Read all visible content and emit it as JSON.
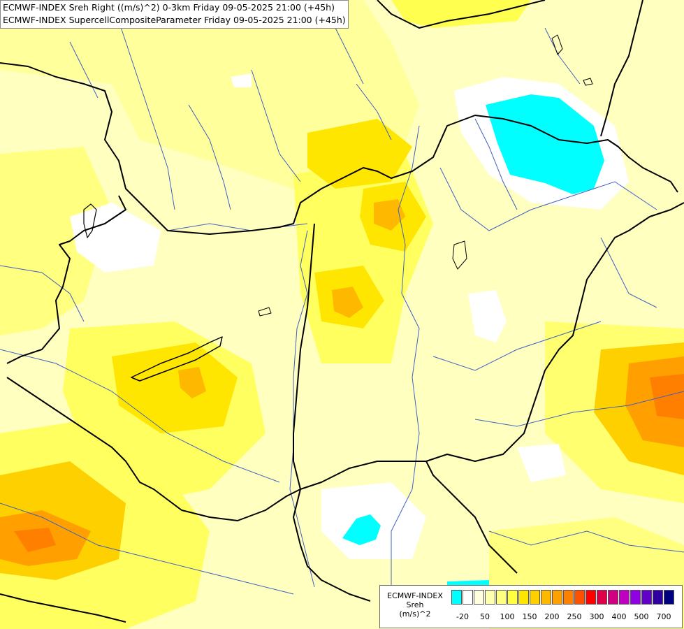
{
  "title_lines": [
    "ECMWF-INDEX Sreh Right ((m/s)^2) 0-3km Friday 09-05-2025 21:00 (+45h)",
    "ECMWF-INDEX SupercellCompositeParameter Friday 09-05-2025 21:00 (+45h)"
  ],
  "legend": {
    "title_lines": [
      "ECMWF-INDEX",
      "Sreh",
      "(m/s)^2"
    ],
    "colors": [
      "#00ffff",
      "#ffffff",
      "#ffffe0",
      "#ffffb0",
      "#ffff80",
      "#ffff40",
      "#ffe600",
      "#ffd000",
      "#ffb800",
      "#ffa000",
      "#ff8000",
      "#ff5000",
      "#ff0000",
      "#e0004a",
      "#d00080",
      "#c000c0",
      "#9000e0",
      "#6000c8",
      "#3000a0",
      "#000080"
    ],
    "ticks": [
      "-20",
      "50",
      "100",
      "150",
      "200",
      "250",
      "300",
      "400",
      "500",
      "700"
    ]
  },
  "colors": {
    "background": "#ffffc0",
    "border_line": "#000000",
    "river_line": "#4060c0"
  }
}
